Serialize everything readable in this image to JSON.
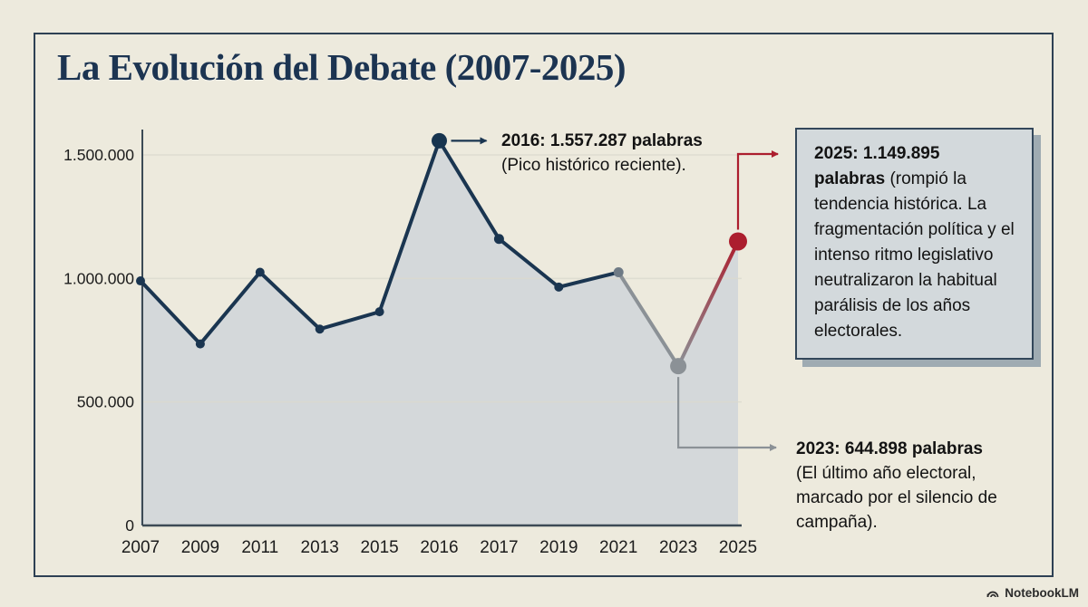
{
  "title": "La Evolución del Debate (2007-2025)",
  "watermark": "NotebookLM",
  "colors": {
    "background": "#edeadd",
    "frame_border": "#2e4154",
    "title_color": "#1c3451",
    "annotation_box_bg": "#d3d9dc",
    "annotation_box_border": "#33475a",
    "annotation_box_shadow": "#9fabb2"
  },
  "chart_data": {
    "type": "area",
    "title": "La Evolución del Debate (2007-2025)",
    "xlabel": "",
    "ylabel": "",
    "categories": [
      "2007",
      "2009",
      "2011",
      "2013",
      "2015",
      "2016",
      "2017",
      "2019",
      "2021",
      "2023",
      "2025"
    ],
    "values": [
      990000,
      735000,
      1025000,
      795000,
      865000,
      1557287,
      1160000,
      965000,
      1025000,
      644898,
      1149895
    ],
    "labeled_points": [
      {
        "category": "2016",
        "value": 1557287,
        "label": "2016: 1.557.287 palabras"
      },
      {
        "category": "2023",
        "value": 644898,
        "label": "2023: 644.898 palabras"
      },
      {
        "category": "2025",
        "value": 1149895,
        "label": "2025: 1.149.895 palabras"
      }
    ],
    "yticks": [
      {
        "label": "1.500.000",
        "value": 1500000
      },
      {
        "label": "1.000.000",
        "value": 1000000
      },
      {
        "label": "500.000",
        "value": 500000
      },
      {
        "label": "0",
        "value": 0
      }
    ],
    "ylim": [
      0,
      1650000
    ],
    "grid": "horizontal",
    "legend": "none",
    "style": {
      "line_color": "#1a3550",
      "gray_color": "#8b9196",
      "red_color": "#ac1e2e",
      "area_fill": "#d4d8da",
      "grid_color": "#d9d9ce",
      "axis_color": "#3c4a55",
      "tick_text_color": "#1c1c1c",
      "point_colors": [
        "#1a3550",
        "#1a3550",
        "#1a3550",
        "#1a3550",
        "#1a3550",
        "#17344f",
        "#1a3550",
        "#1a3550",
        "#6e7a85",
        "#8b9196",
        "#ac1e2e"
      ],
      "point_radii": [
        5,
        5,
        5,
        5,
        5,
        8.5,
        5.5,
        5,
        5.5,
        9,
        10
      ],
      "segment_kinds": [
        "navy",
        "navy",
        "navy",
        "navy",
        "navy",
        "navy",
        "navy",
        "navy",
        "gray",
        "gradient"
      ]
    }
  },
  "annotations": {
    "peak2016": {
      "headline": "2016: 1.557.287 palabras",
      "body": "(Pico histórico reciente)."
    },
    "box2025": {
      "headline": "2025: 1.149.895 palabras",
      "body": "(rompió la tendencia histórica. La fragmentación política y el intenso ritmo legislativo neutralizaron la habitual parálisis de los años electorales."
    },
    "note2023": {
      "headline": "2023: 644.898 palabras",
      "body": "(El último año electoral, marcado por el silencio de campaña)."
    }
  }
}
